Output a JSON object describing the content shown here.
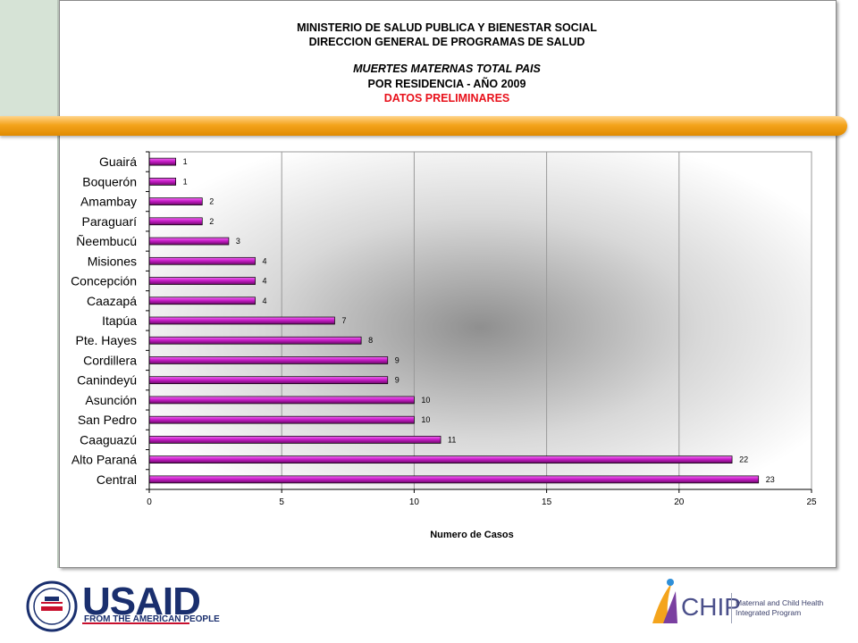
{
  "header": {
    "line1": "MINISTERIO DE SALUD PUBLICA Y BIENESTAR SOCIAL",
    "line2": "DIRECCION GENERAL DE PROGRAMAS DE SALUD",
    "line3": "MUERTES MATERNAS TOTAL PAIS",
    "line4": "POR RESIDENCIA  -  AÑO 2009",
    "line5": "DATOS    PRELIMINARES"
  },
  "colors": {
    "bar": "#a0129a",
    "bar_light": "#f06cf0",
    "header_red": "#e8101a",
    "accent_orange": "#f4a41c"
  },
  "chart_data": {
    "type": "bar",
    "orientation": "horizontal",
    "categories": [
      "Guairá",
      "Boquerón",
      "Amambay",
      "Paraguarí",
      "Ñeembucú",
      "Misiones",
      "Concepción",
      "Caazapá",
      "Itapúa",
      "Pte. Hayes",
      "Cordillera",
      "Canindeyú",
      "Asunción",
      "San Pedro",
      "Caaguazú",
      "Alto Paraná",
      "Central"
    ],
    "values": [
      1,
      1,
      2,
      2,
      3,
      4,
      4,
      4,
      7,
      8,
      9,
      9,
      10,
      10,
      11,
      22,
      23
    ],
    "xlabel": "Numero de Casos",
    "xlim": [
      0,
      25
    ],
    "xticks": [
      0,
      5,
      10,
      15,
      20,
      25
    ],
    "grid": "vertical"
  },
  "logos": {
    "usaid_name": "USAID",
    "usaid_tagline": "FROM THE AMERICAN PEOPLE",
    "chip_name": "CHIP",
    "chip_desc_line1": "Maternal and Child Health",
    "chip_desc_line2": "Integrated Program"
  }
}
